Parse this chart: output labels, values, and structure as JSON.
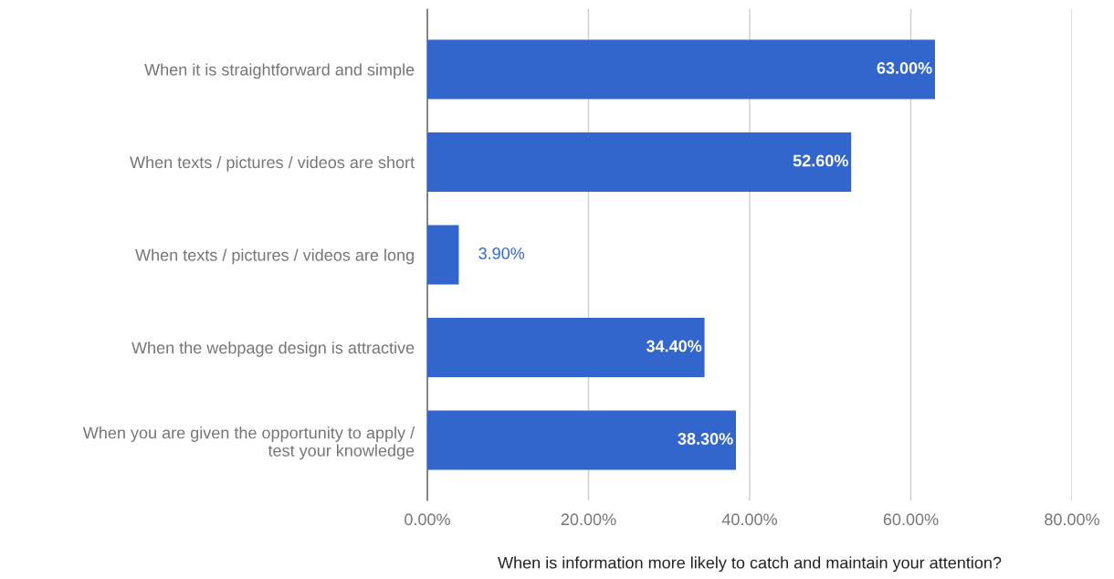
{
  "chart_data": {
    "type": "bar",
    "orientation": "horizontal",
    "categories": [
      "When it is straightforward and simple",
      "When texts / pictures / videos are short",
      "When texts / pictures / videos are long",
      "When the webpage design is attractive",
      "When you are given the opportunity to apply /\ntest your knowledge"
    ],
    "values": [
      63.0,
      52.6,
      3.9,
      34.4,
      38.3
    ],
    "value_labels": [
      "63.00%",
      "52.60%",
      "3.90%",
      "34.40%",
      "38.30%"
    ],
    "color": "#3366cc",
    "xlabel": "When is information more likely to catch and maintain your attention?",
    "xlim": [
      0,
      80
    ],
    "xticks": [
      {
        "value": 0,
        "label": "0.00%"
      },
      {
        "value": 20,
        "label": "20.00%"
      },
      {
        "value": 40,
        "label": "40.00%"
      },
      {
        "value": 60,
        "label": "60.00%"
      },
      {
        "value": 80,
        "label": "80.00%"
      }
    ],
    "grid": "x"
  }
}
